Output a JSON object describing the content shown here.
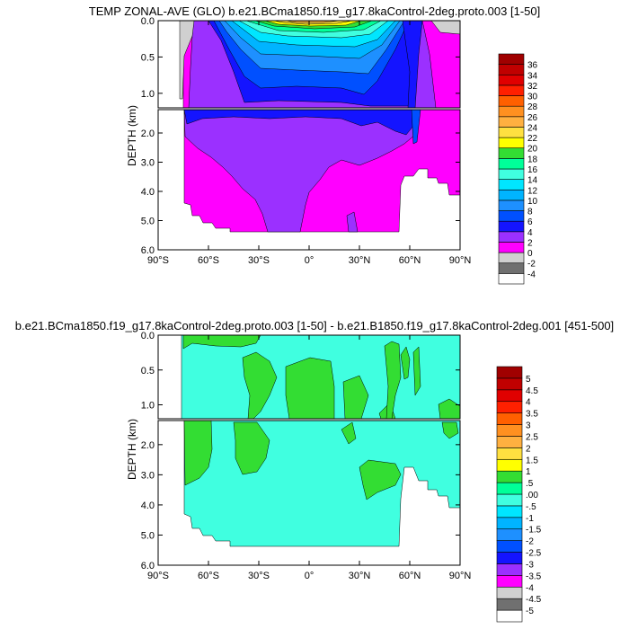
{
  "chart_data": [
    {
      "type": "heatmap",
      "subtype": "filled-contour",
      "title": "TEMP ZONAL-AVE (GLO) b.e21.BCma1850.f19_g17.8kaControl-2deg.proto.003 [1-50]",
      "xlabel": "",
      "ylabel": "DEPTH (km)",
      "xticks": [
        "90°S",
        "60°S",
        "30°S",
        "0°",
        "30°N",
        "60°N",
        "90°N"
      ],
      "xlim": [
        -90,
        90
      ],
      "upper_yticks": [
        "0.0",
        "0.5",
        "1.0"
      ],
      "lower_yticks": [
        "2.0",
        "3.0",
        "4.0",
        "5.0",
        "6.0"
      ],
      "upper_ylim": [
        0,
        1.2
      ],
      "lower_ylim": [
        1.2,
        6.0
      ],
      "colorbar": {
        "labels": [
          "36",
          "34",
          "32",
          "30",
          "28",
          "26",
          "24",
          "22",
          "20",
          "18",
          "16",
          "14",
          "12",
          "10",
          "8",
          "6",
          "4",
          "2",
          "0",
          "-2",
          "-4"
        ],
        "colors": [
          "#ffffff",
          "#707070",
          "#d0d0d0",
          "#ff00ff",
          "#9b30ff",
          "#1414ff",
          "#0050ff",
          "#1e90ff",
          "#00b4ff",
          "#00e6ff",
          "#40ffe0",
          "#00ff99",
          "#33dd33",
          "#ffff00",
          "#ffe040",
          "#ffb040",
          "#ff9020",
          "#ff6000",
          "#ff2000",
          "#e00000",
          "#c00000",
          "#a00000"
        ]
      }
    },
    {
      "type": "heatmap",
      "subtype": "filled-contour",
      "title": "b.e21.BCma1850.f19_g17.8kaControl-2deg.proto.003 [1-50] - b.e21.B1850.f19_g17.8kaControl-2deg.001 [451-500]",
      "xlabel": "",
      "ylabel": "DEPTH (km)",
      "xticks": [
        "90°S",
        "60°S",
        "30°S",
        "0°",
        "30°N",
        "60°N",
        "90°N"
      ],
      "xlim": [
        -90,
        90
      ],
      "upper_yticks": [
        "0.0",
        "0.5",
        "1.0"
      ],
      "lower_yticks": [
        "2.0",
        "3.0",
        "4.0",
        "5.0",
        "6.0"
      ],
      "upper_ylim": [
        0,
        1.2
      ],
      "lower_ylim": [
        1.2,
        6.0
      ],
      "colorbar": {
        "labels": [
          "5",
          "4.5",
          "4",
          "3.5",
          "3",
          "2.5",
          "2",
          "1.5",
          "1",
          ".5",
          ".00",
          "-.5",
          "-1",
          "-1.5",
          "-2",
          "-2.5",
          "-3",
          "-3.5",
          "-4",
          "-4.5",
          "-5"
        ],
        "colors": [
          "#ffffff",
          "#707070",
          "#d0d0d0",
          "#ff00ff",
          "#9b30ff",
          "#1414ff",
          "#0050ff",
          "#1e90ff",
          "#00b4ff",
          "#00e6ff",
          "#40ffe0",
          "#00ff99",
          "#33dd33",
          "#ffff00",
          "#ffe040",
          "#ffb040",
          "#ff9020",
          "#ff6000",
          "#ff2000",
          "#e00000",
          "#c00000",
          "#a00000"
        ]
      }
    }
  ]
}
